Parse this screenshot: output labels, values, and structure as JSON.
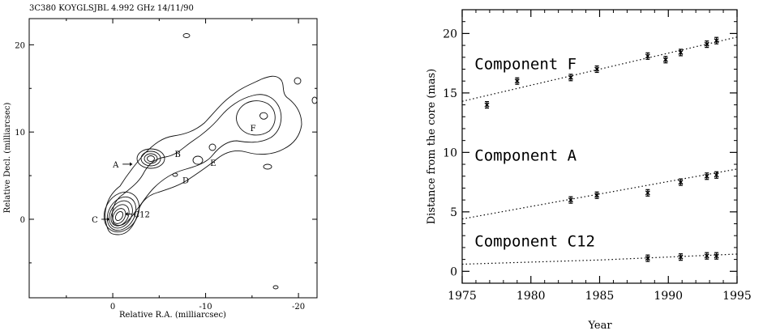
{
  "left_header": "3C380  KOYGLSJBL  4.992 GHz  14/11/90",
  "chart_data": [
    {
      "type": "contour",
      "title": "3C380  KOYGLSJBL  4.992 GHz  14/11/90",
      "xlabel": "Relative R.A. (milliarcsec)",
      "ylabel": "Relative Decl. (milliarcsec)",
      "xlim": [
        9,
        -22
      ],
      "ylim": [
        -9,
        23
      ],
      "x_ticks": [
        0,
        -10,
        -20
      ],
      "y_ticks": [
        20,
        10,
        0
      ],
      "tick_labels_x": [
        "0",
        "-10",
        "-20"
      ],
      "tick_labels_y": [
        "20",
        "10",
        "0"
      ],
      "components": [
        {
          "label": "C",
          "x": 0,
          "y": 0,
          "arrow": "right"
        },
        {
          "label": "C12",
          "x": -1,
          "y": 0.6,
          "arrow": "left"
        },
        {
          "label": "A",
          "x": -3.5,
          "y": 6.5,
          "arrow": "right"
        },
        {
          "label": "B",
          "x": -6.5,
          "y": 7.5
        },
        {
          "label": "D",
          "x": -7.5,
          "y": 4.5
        },
        {
          "label": "E",
          "x": -10.5,
          "y": 6.5
        },
        {
          "label": "F",
          "x": -15.5,
          "y": 10.5
        }
      ]
    },
    {
      "type": "scatter",
      "xlabel": "Year",
      "ylabel": "Distance from the core (mas)",
      "xlim": [
        1975,
        1995
      ],
      "ylim": [
        -1,
        22
      ],
      "x_ticks": [
        1975,
        1980,
        1985,
        1990,
        1995
      ],
      "y_ticks": [
        0,
        5,
        10,
        15,
        20
      ],
      "series": [
        {
          "name": "Component F",
          "x": [
            1976.8,
            1979.0,
            1982.9,
            1984.8,
            1988.5,
            1989.8,
            1990.9,
            1992.8,
            1993.5
          ],
          "y": [
            14.0,
            16.0,
            16.3,
            17.0,
            18.1,
            17.8,
            18.4,
            19.1,
            19.4
          ],
          "fit": [
            [
              1975,
              14.3
            ],
            [
              1995,
              19.7
            ]
          ]
        },
        {
          "name": "Component A",
          "x": [
            1982.9,
            1984.8,
            1988.5,
            1990.9,
            1992.8,
            1993.5
          ],
          "y": [
            6.0,
            6.4,
            6.6,
            7.5,
            8.0,
            8.1
          ],
          "fit": [
            [
              1975,
              4.4
            ],
            [
              1995,
              8.6
            ]
          ]
        },
        {
          "name": "Component C12",
          "x": [
            1988.5,
            1990.9,
            1992.8,
            1993.5
          ],
          "y": [
            1.1,
            1.2,
            1.3,
            1.3
          ],
          "fit": [
            [
              1975,
              0.6
            ],
            [
              1985,
              0.95
            ],
            [
              1995,
              1.45
            ]
          ]
        }
      ]
    }
  ]
}
